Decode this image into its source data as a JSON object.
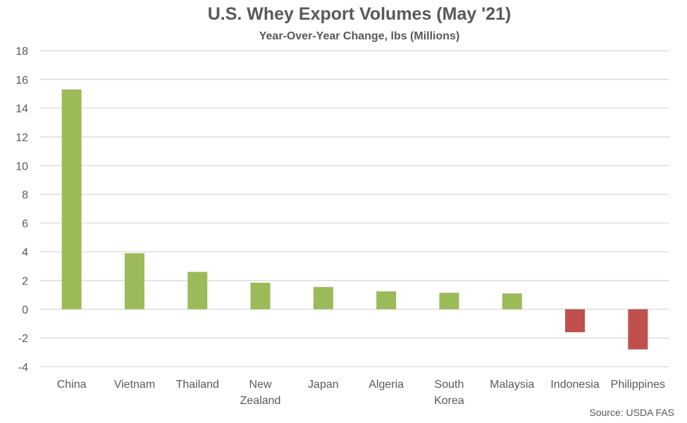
{
  "chart_data": {
    "type": "bar",
    "title": "U.S. Whey Export Volumes (May '21)",
    "subtitle": "Year-Over-Year Change, lbs (Millions)",
    "categories": [
      [
        "China"
      ],
      [
        "Vietnam"
      ],
      [
        "Thailand"
      ],
      [
        "New",
        "Zealand"
      ],
      [
        "Japan"
      ],
      [
        "Algeria"
      ],
      [
        "South",
        "Korea"
      ],
      [
        "Malaysia"
      ],
      [
        "Indonesia"
      ],
      [
        "Philippines"
      ]
    ],
    "values": [
      15.3,
      3.9,
      2.6,
      1.85,
      1.55,
      1.25,
      1.15,
      1.1,
      -1.6,
      -2.8
    ],
    "ylim": [
      -4,
      18
    ],
    "yticks": [
      -4,
      -2,
      0,
      2,
      4,
      6,
      8,
      10,
      12,
      14,
      16,
      18
    ],
    "grid": true,
    "colors": {
      "positive": "#9BBB59",
      "negative": "#C0504D",
      "grid": "#D9D9D9"
    },
    "source": "Source: USDA FAS"
  }
}
